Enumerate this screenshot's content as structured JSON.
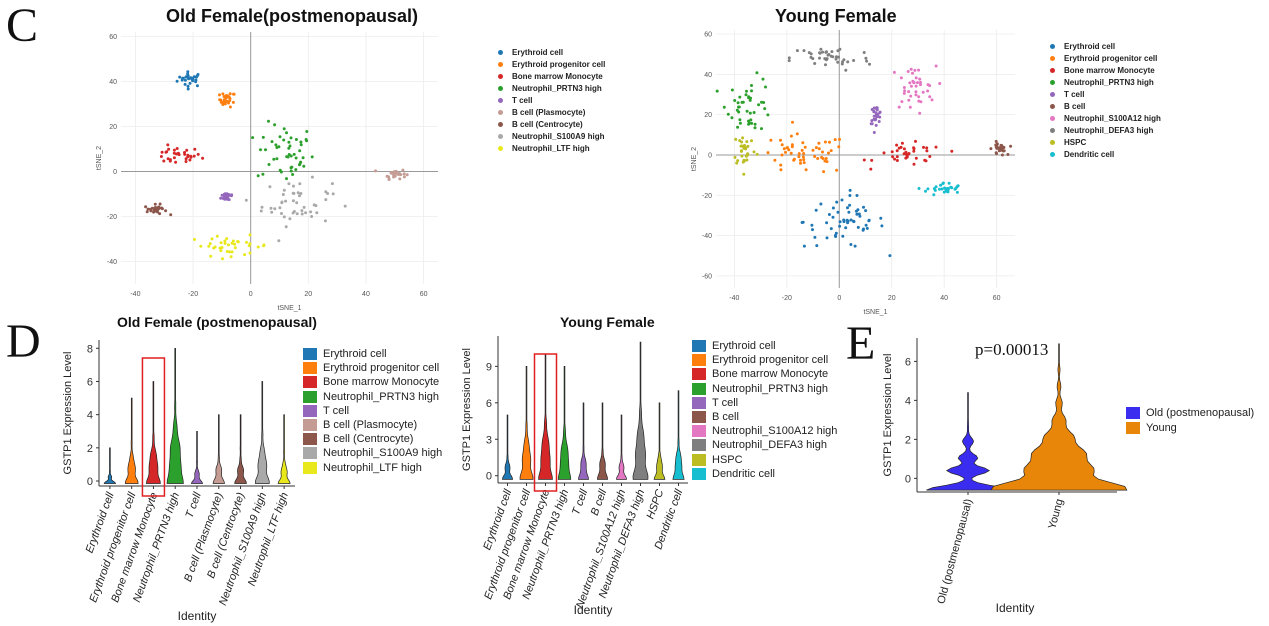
{
  "panels": {
    "C": {
      "letter": "C",
      "plots": [
        {
          "title": "Old Female(postmenopausal)",
          "xlabel": "tSNE_1",
          "ylabel": "tSNE_2",
          "xticks": [
            "-40",
            "-20",
            "0",
            "20",
            "40",
            "60"
          ],
          "yticks": [
            "60",
            "40",
            "20",
            "0",
            "-20",
            "-40"
          ],
          "legend": [
            {
              "label": "Erythroid cell",
              "color": "#1f77b4"
            },
            {
              "label": "Erythroid progenitor cell",
              "color": "#ff7f0e"
            },
            {
              "label": "Bone marrow Monocyte",
              "color": "#d62728"
            },
            {
              "label": "Neutrophil_PRTN3 high",
              "color": "#2ca02c"
            },
            {
              "label": "T cell",
              "color": "#9467bd"
            },
            {
              "label": "B cell (Plasmocyte)",
              "color": "#c49c94"
            },
            {
              "label": "B cell (Centrocyte)",
              "color": "#8c564b"
            },
            {
              "label": "Neutrophil_S100A9 high",
              "color": "#a9a9a9"
            },
            {
              "label": "Neutrophil_LTF high",
              "color": "#e8e81c"
            }
          ]
        },
        {
          "title": "Young Female",
          "xlabel": "tSNE_1",
          "ylabel": "tSNE_2",
          "xticks": [
            "-40",
            "-20",
            "0",
            "20",
            "40",
            "60"
          ],
          "yticks": [
            "60",
            "40",
            "20",
            "0",
            "-20",
            "-40",
            "-60"
          ],
          "legend": [
            {
              "label": "Erythroid cell",
              "color": "#1f77b4"
            },
            {
              "label": "Erythroid progenitor cell",
              "color": "#ff7f0e"
            },
            {
              "label": "Bone marrow Monocyte",
              "color": "#d62728"
            },
            {
              "label": "Neutrophil_PRTN3 high",
              "color": "#2ca02c"
            },
            {
              "label": "T cell",
              "color": "#9467bd"
            },
            {
              "label": "B cell",
              "color": "#8c564b"
            },
            {
              "label": "Neutrophil_S100A12 high",
              "color": "#e377c2"
            },
            {
              "label": "Neutrophil_DEFA3 high",
              "color": "#7f7f7f"
            },
            {
              "label": "HSPC",
              "color": "#bcbd22"
            },
            {
              "label": "Dendritic cell",
              "color": "#17becf"
            }
          ]
        }
      ]
    },
    "D": {
      "letter": "D",
      "plots": [
        {
          "title": "Old Female (postmenopausal)",
          "ylabel": "GSTP1 Expression Level",
          "xlabel": "Identity",
          "yticks": [
            "8",
            "6",
            "4",
            "2",
            "0"
          ],
          "categories": [
            "Erythroid cell",
            "Erythroid progenitor cell",
            "Bone marrow Monocyte",
            "Neutrophil_PRTN3 high",
            "T cell",
            "B cell (Plasmocyte)",
            "B cell (Centrocyte)",
            "Neutrophil_S100A9 high",
            "Neutrophil_LTF high"
          ],
          "colors": [
            "#1f77b4",
            "#ff7f0e",
            "#d62728",
            "#2ca02c",
            "#9467bd",
            "#c49c94",
            "#8c564b",
            "#a9a9a9",
            "#e8e81c"
          ],
          "max_values": [
            2,
            5,
            6,
            8,
            3,
            4,
            4,
            6,
            4
          ]
        },
        {
          "title": "Young Female",
          "ylabel": "GSTP1 Expression Level",
          "xlabel": "Identity",
          "yticks": [
            "9",
            "6",
            "3",
            "0"
          ],
          "categories": [
            "Erythroid cell",
            "Erythroid progenitor cell",
            "Bone marrow Monocyte",
            "Neutrophil_PRTN3 high",
            "T cell",
            "B cell",
            "Neutrophil_S100A12 high",
            "Neutrophil_DEFA3 high",
            "HSPC",
            "Dendritic cell"
          ],
          "colors": [
            "#1f77b4",
            "#ff7f0e",
            "#d62728",
            "#2ca02c",
            "#9467bd",
            "#8c564b",
            "#e377c2",
            "#7f7f7f",
            "#bcbd22",
            "#17becf"
          ],
          "max_values": [
            5,
            9,
            10,
            9,
            6,
            6,
            5,
            11,
            6,
            7
          ]
        }
      ]
    },
    "E": {
      "letter": "E",
      "pvalue": "p=0.00013",
      "ylabel": "GSTP1 Expression Level",
      "xlabel": "Identity",
      "yticks": [
        "6",
        "4",
        "2",
        "0"
      ],
      "categories": [
        "Old (postmenopausal)",
        "Young"
      ],
      "legend": [
        {
          "label": "Old (postmenopausal)",
          "color": "#3b2df0"
        },
        {
          "label": "Young",
          "color": "#e8860a"
        }
      ],
      "max_values": [
        4.4,
        6.9
      ]
    }
  },
  "chart_data": [
    {
      "type": "scatter",
      "title": "Old Female(postmenopausal)",
      "xlabel": "tSNE_1",
      "ylabel": "tSNE_2",
      "xlim": [
        -45,
        65
      ],
      "ylim": [
        -50,
        62
      ],
      "clusters": [
        {
          "name": "Erythroid cell",
          "center": [
            -21,
            41
          ],
          "spread": [
            4,
            3
          ]
        },
        {
          "name": "Erythroid progenitor cell",
          "center": [
            -8,
            32
          ],
          "spread": [
            2.5,
            3
          ]
        },
        {
          "name": "Bone marrow Monocyte",
          "center": [
            -26,
            7
          ],
          "spread": [
            8,
            3.5
          ]
        },
        {
          "name": "Neutrophil_PRTN3 high",
          "center": [
            12,
            8
          ],
          "spread": [
            9,
            12
          ]
        },
        {
          "name": "T cell",
          "center": [
            -8,
            -11
          ],
          "spread": [
            2,
            2
          ]
        },
        {
          "name": "B cell (Plasmocyte)",
          "center": [
            50,
            -1
          ],
          "spread": [
            3.5,
            2
          ]
        },
        {
          "name": "B cell (Centrocyte)",
          "center": [
            -33,
            -17
          ],
          "spread": [
            3.5,
            2
          ]
        },
        {
          "name": "Neutrophil_S100A9 high",
          "center": [
            16,
            -14
          ],
          "spread": [
            11,
            9
          ]
        },
        {
          "name": "Neutrophil_LTF high",
          "center": [
            -7,
            -33
          ],
          "spread": [
            13,
            4
          ]
        }
      ]
    },
    {
      "type": "scatter",
      "title": "Young Female",
      "xlabel": "tSNE_1",
      "ylabel": "tSNE_2",
      "xlim": [
        -47,
        67
      ],
      "ylim": [
        -66,
        62
      ],
      "clusters": [
        {
          "name": "Erythroid cell",
          "center": [
            2,
            -33
          ],
          "spread": [
            14,
            12
          ]
        },
        {
          "name": "Erythroid progenitor cell",
          "center": [
            -14,
            0
          ],
          "spread": [
            16,
            9
          ]
        },
        {
          "name": "Bone marrow Monocyte",
          "center": [
            27,
            0
          ],
          "spread": [
            12,
            5
          ]
        },
        {
          "name": "Neutrophil_PRTN3 high",
          "center": [
            -34,
            25
          ],
          "spread": [
            8,
            12
          ]
        },
        {
          "name": "T cell",
          "center": [
            14,
            20
          ],
          "spread": [
            2,
            4
          ]
        },
        {
          "name": "B cell",
          "center": [
            61,
            3
          ],
          "spread": [
            2.5,
            3
          ]
        },
        {
          "name": "Neutrophil_S100A12 high",
          "center": [
            28,
            33
          ],
          "spread": [
            8,
            10
          ]
        },
        {
          "name": "Neutrophil_DEFA3 high",
          "center": [
            -3,
            48
          ],
          "spread": [
            14,
            6
          ]
        },
        {
          "name": "HSPC",
          "center": [
            -36,
            3
          ],
          "spread": [
            4,
            8
          ]
        },
        {
          "name": "Dendritic cell",
          "center": [
            40,
            -17
          ],
          "spread": [
            6,
            3
          ]
        }
      ]
    },
    {
      "type": "violin",
      "title": "Old Female (postmenopausal)",
      "xlabel": "Identity",
      "ylabel": "GSTP1 Expression Level",
      "ylim": [
        -0.3,
        8.5
      ],
      "categories": [
        "Erythroid cell",
        "Erythroid progenitor cell",
        "Bone marrow Monocyte",
        "Neutrophil_PRTN3 high",
        "T cell",
        "B cell (Plasmocyte)",
        "B cell (Centrocyte)",
        "Neutrophil_S100A9 high",
        "Neutrophil_LTF high"
      ],
      "max": [
        2,
        5,
        6,
        8,
        3,
        4,
        4,
        6,
        4
      ],
      "highlight": "Bone marrow Monocyte"
    },
    {
      "type": "violin",
      "title": "Young Female",
      "xlabel": "Identity",
      "ylabel": "GSTP1 Expression Level",
      "ylim": [
        -0.6,
        11.5
      ],
      "categories": [
        "Erythroid cell",
        "Erythroid progenitor cell",
        "Bone marrow Monocyte",
        "Neutrophil_PRTN3 high",
        "T cell",
        "B cell",
        "Neutrophil_S100A12 high",
        "Neutrophil_DEFA3 high",
        "HSPC",
        "Dendritic cell"
      ],
      "max": [
        5,
        9,
        10,
        9,
        6,
        6,
        5,
        11,
        6,
        7
      ],
      "highlight": "Bone marrow Monocyte"
    },
    {
      "type": "violin",
      "xlabel": "Identity",
      "ylabel": "GSTP1 Expression Level",
      "ylim": [
        -0.7,
        7.2
      ],
      "categories": [
        "Old (postmenopausal)",
        "Young"
      ],
      "max": [
        4.4,
        6.9
      ],
      "annotation": "p=0.00013"
    }
  ]
}
